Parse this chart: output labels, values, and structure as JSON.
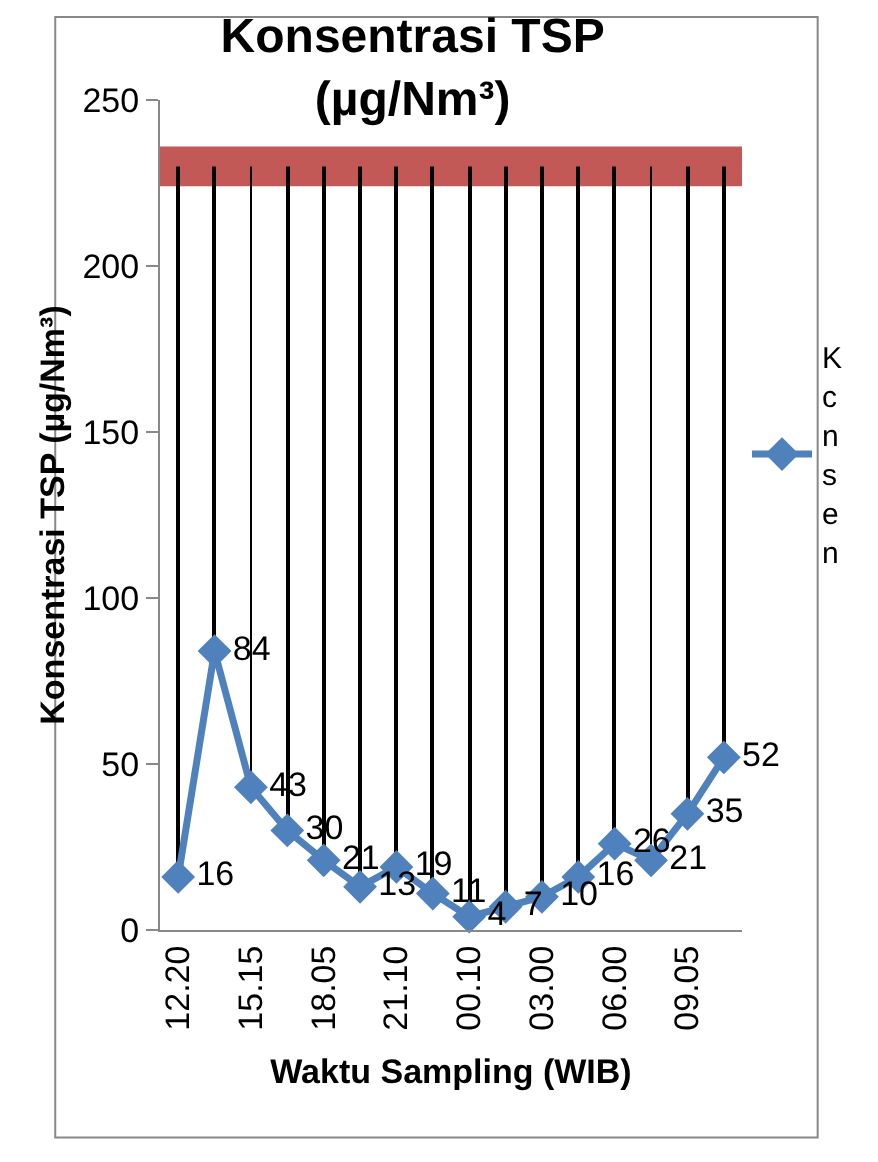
{
  "chart_data": {
    "type": "line",
    "title": "Konsentrasi TSP\n(µg/Nm³)",
    "xlabel": "Waktu Sampling (WIB)",
    "ylabel": "Konsentrasi TSP (µg/Nm³)",
    "categories": [
      "12.20",
      null,
      "15.15",
      null,
      "18.05",
      null,
      "21.10",
      null,
      "00.10",
      null,
      "03.00",
      null,
      "06.00",
      null,
      "09.05",
      null
    ],
    "series": [
      {
        "type": "bar",
        "color": "#000000",
        "values": [
          214,
          146,
          187,
          200,
          209,
          217,
          211,
          219,
          226,
          223,
          220,
          214,
          204,
          209,
          195,
          178
        ],
        "base": [
          16,
          84,
          43,
          30,
          21,
          13,
          19,
          11,
          4,
          7,
          10,
          16,
          26,
          21,
          35,
          52
        ]
      },
      {
        "name": "K\nc\nn\ns\ne\nn",
        "color": "#4f81bd",
        "values": [
          16,
          84,
          43,
          30,
          21,
          13,
          19,
          11,
          4,
          7,
          10,
          16,
          26,
          21,
          35,
          52
        ],
        "value_labels": [
          "16",
          "84",
          "43",
          "30",
          "21",
          "13",
          "19",
          "11",
          "4",
          "7",
          "10",
          "16",
          "26",
          "21",
          "35",
          "52"
        ]
      }
    ],
    "bands": [
      {
        "axis": "y",
        "from": 224,
        "to": 236,
        "color": "#c0504d"
      }
    ],
    "ylim": [
      0,
      250
    ],
    "yticks": [
      0,
      50,
      100,
      150,
      200,
      250
    ],
    "legend": "right",
    "marker": "diamond",
    "line_style": "solid"
  }
}
